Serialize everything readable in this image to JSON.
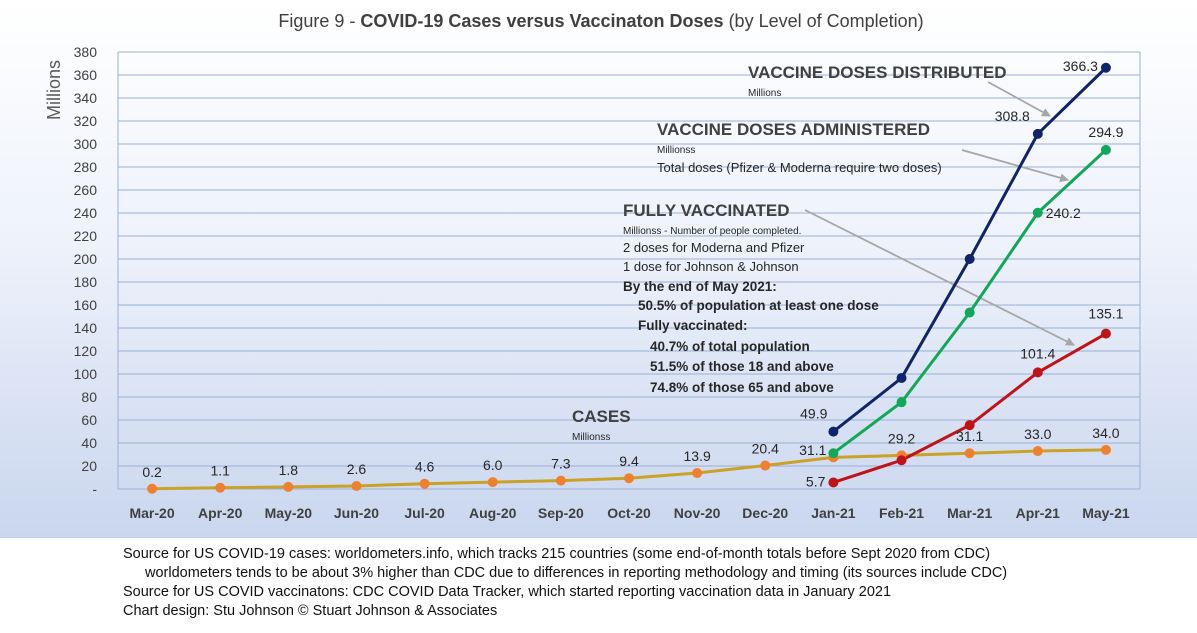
{
  "colors": {
    "distributed": "#0f2469",
    "administered": "#12a85a",
    "fully": "#c01318",
    "cases_line": "#c9a227",
    "cases_marker": "#f07f2e",
    "grid": "#9ab0d4",
    "annotation_arrow": "#a6a6a6"
  },
  "chart_data": {
    "type": "line",
    "title_prefix": "Figure 9 - ",
    "title_bold": "COVID-19 Cases versus Vaccinaton Doses",
    "title_suffix": " (by Level of Completion)",
    "ylabel": "Millions",
    "xlabel": "",
    "ylim": [
      0,
      380
    ],
    "yticks": [
      0,
      20,
      40,
      60,
      80,
      100,
      120,
      140,
      160,
      180,
      200,
      220,
      240,
      260,
      280,
      300,
      320,
      340,
      360,
      380
    ],
    "ytick_labels": [
      "-",
      "20",
      "40",
      "60",
      "80",
      "100",
      "120",
      "140",
      "160",
      "180",
      "200",
      "220",
      "240",
      "260",
      "280",
      "300",
      "320",
      "340",
      "360",
      "380"
    ],
    "grid": true,
    "legend": "none",
    "categories": [
      "Mar-20",
      "Apr-20",
      "May-20",
      "Jun-20",
      "Jul-20",
      "Aug-20",
      "Sep-20",
      "Oct-20",
      "Nov-20",
      "Dec-20",
      "Jan-21",
      "Feb-21",
      "Mar-21",
      "Apr-21",
      "May-21"
    ],
    "series": [
      {
        "key": "cases",
        "values": [
          0.2,
          1.1,
          1.8,
          2.6,
          4.6,
          6.0,
          7.3,
          9.4,
          13.9,
          20.4,
          27.5,
          29.2,
          31.1,
          33.0,
          34.0
        ],
        "labels": [
          "0.2",
          "1.1",
          "1.8",
          "2.6",
          "4.6",
          "6.0",
          "7.3",
          "9.4",
          "13.9",
          "20.4",
          "",
          "29.2",
          "31.1",
          "33.0",
          "34.0"
        ]
      },
      {
        "key": "distributed",
        "values": [
          null,
          null,
          null,
          null,
          null,
          null,
          null,
          null,
          null,
          null,
          49.9,
          96.5,
          200.0,
          308.8,
          366.3
        ],
        "labels": [
          "",
          "",
          "",
          "",
          "",
          "",
          "",
          "",
          "",
          "",
          "49.9",
          "",
          "",
          "308.8",
          "366.3"
        ]
      },
      {
        "key": "administered",
        "values": [
          null,
          null,
          null,
          null,
          null,
          null,
          null,
          null,
          null,
          null,
          31.1,
          75.5,
          153.5,
          240.2,
          294.9
        ],
        "labels": [
          "",
          "",
          "",
          "",
          "",
          "",
          "",
          "",
          "",
          "",
          "31.1",
          "",
          "",
          "240.2",
          "294.9"
        ]
      },
      {
        "key": "fully",
        "values": [
          null,
          null,
          null,
          null,
          null,
          null,
          null,
          null,
          null,
          null,
          5.7,
          25.0,
          55.5,
          101.4,
          135.1
        ],
        "labels": [
          "",
          "",
          "",
          "",
          "",
          "",
          "",
          "",
          "",
          "",
          "5.7",
          "",
          "",
          "101.4",
          "135.1"
        ]
      }
    ],
    "annotations": {
      "distributed": {
        "title": "VACCINE DOSES DISTRIBUTED",
        "lines": [
          "Millions"
        ]
      },
      "administered": {
        "title": "VACCINE DOSES ADMINISTERED",
        "lines": [
          "Millionss",
          "Total doses (Pfizer & Moderna require two doses)"
        ]
      },
      "fully": {
        "title": "FULLY VACCINATED",
        "lines": [
          "Millionss - Number of people completed.",
          "2 doses for Moderna and Pfizer",
          "1 dose for Johnson & Johnson"
        ],
        "bold_lines": [
          "By the end of May 2021:",
          "50.5% of population at least one dose",
          "Fully vaccinated:",
          "40.7% of total population",
          "51.5% of those 18 and above",
          "74.8% of those 65 and above"
        ]
      },
      "cases": {
        "title": "CASES",
        "lines": [
          "Millionss"
        ]
      }
    }
  },
  "sources": {
    "line1": "Source for US COVID-19 cases: worldometers.info, which tracks 215 countries  (some end-of-month totals before Sept 2020 from CDC)",
    "line2": "worldometers tends to be about 3% higher than CDC due to differences in reporting methodology and timing (its sources include CDC)",
    "line3": "Source for US COVID vaccinatons: CDC COVID Data Tracker, which started reporting vaccination data in January 2021",
    "line4": "Chart design: Stu Johnson © Stuart Johnson & Associates"
  }
}
